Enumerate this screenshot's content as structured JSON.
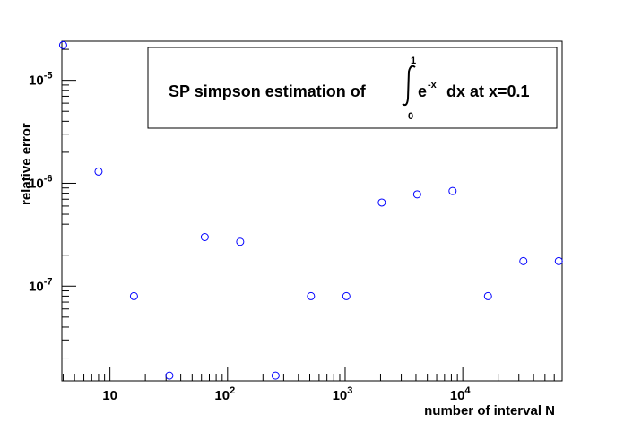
{
  "chart_data": {
    "type": "scatter",
    "title": {
      "prefix": "SP simpson estimation of",
      "integral_upper": "1",
      "integral_lower": "0",
      "integrand_base": "e",
      "integrand_exp": "-x",
      "suffix": "dx at x=0.1"
    },
    "xlabel": "number of interval N",
    "ylabel": "relative error",
    "x_scale": "log",
    "y_scale": "log",
    "xlim": [
      3.9,
      70000
    ],
    "ylim": [
      1.2e-08,
      2.4e-05
    ],
    "x_ticks": [
      {
        "value": 10,
        "base": "10",
        "exp": ""
      },
      {
        "value": 100,
        "base": "10",
        "exp": "2"
      },
      {
        "value": 1000,
        "base": "10",
        "exp": "3"
      },
      {
        "value": 10000,
        "base": "10",
        "exp": "4"
      }
    ],
    "y_ticks": [
      {
        "value": 1e-07,
        "base": "10",
        "exp": "-7"
      },
      {
        "value": 1e-06,
        "base": "10",
        "exp": "-6"
      },
      {
        "value": 1e-05,
        "base": "10",
        "exp": "-5"
      }
    ],
    "marker": "open-circle",
    "marker_color": "#0000ff",
    "legend": "none",
    "grid": false,
    "points": [
      {
        "x": 4,
        "y": 2.2e-05
      },
      {
        "x": 8,
        "y": 1.3e-06
      },
      {
        "x": 16,
        "y": 8e-08
      },
      {
        "x": 32,
        "y": 1.35e-08
      },
      {
        "x": 64,
        "y": 3e-07
      },
      {
        "x": 128,
        "y": 2.7e-07
      },
      {
        "x": 256,
        "y": 1.35e-08
      },
      {
        "x": 512,
        "y": 8e-08
      },
      {
        "x": 1024,
        "y": 8e-08
      },
      {
        "x": 2048,
        "y": 6.5e-07
      },
      {
        "x": 4096,
        "y": 7.8e-07
      },
      {
        "x": 8192,
        "y": 8.4e-07
      },
      {
        "x": 16384,
        "y": 8e-08
      },
      {
        "x": 32768,
        "y": 1.75e-07
      },
      {
        "x": 65536,
        "y": 1.75e-07
      }
    ]
  }
}
